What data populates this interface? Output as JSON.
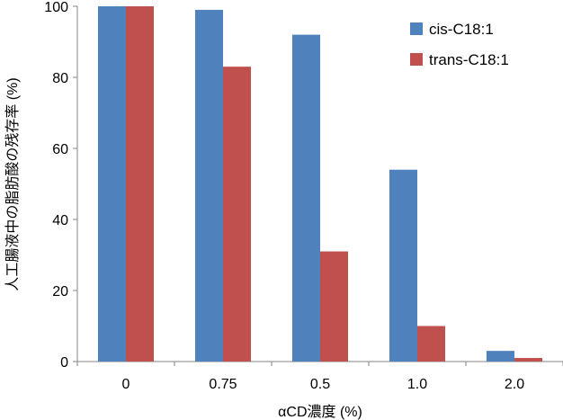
{
  "chart_data": {
    "type": "bar",
    "xlabel": "αCD濃度 (%)",
    "ylabel": "人工腸液中の脂肪酸の残存率 (%)",
    "categories": [
      "0",
      "0.75",
      "0.5",
      "1.0",
      "2.0"
    ],
    "ylim": [
      0,
      100
    ],
    "yticks": [
      0,
      20,
      40,
      60,
      80,
      100
    ],
    "grid": false,
    "legend_position": "top-right",
    "series": [
      {
        "name": "cis-C18:1",
        "color": "#4F81BD",
        "values": [
          100,
          99,
          92,
          54,
          3
        ]
      },
      {
        "name": "trans-C18:1",
        "color": "#C0504D",
        "values": [
          100,
          83,
          31,
          10,
          1
        ]
      }
    ]
  }
}
